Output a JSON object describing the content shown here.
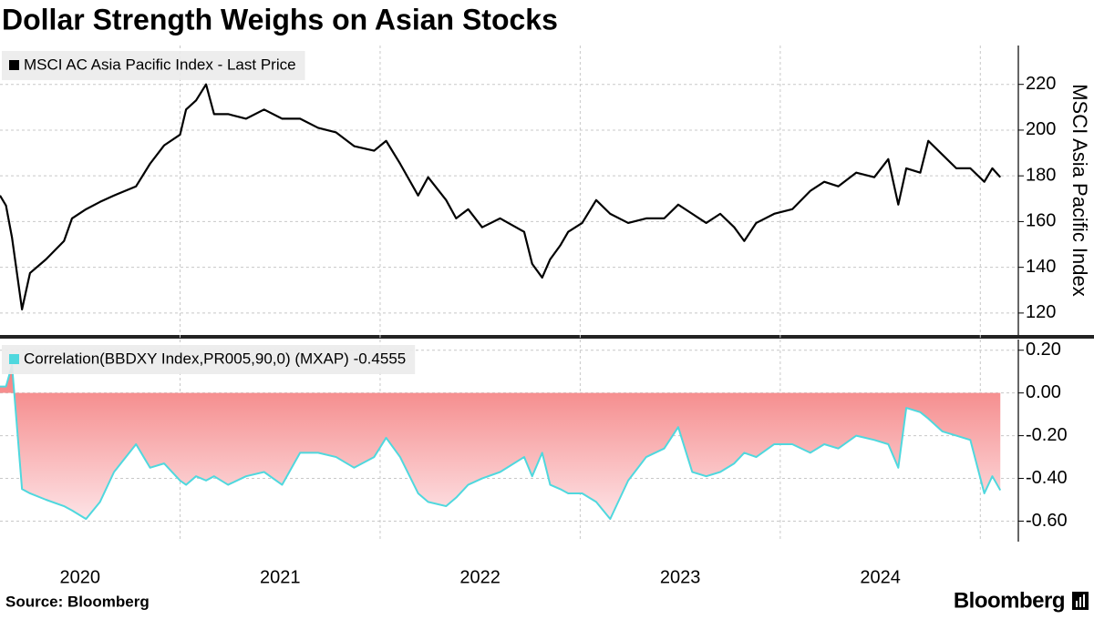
{
  "title": "Dollar Strength Weighs on Asian Stocks",
  "source": "Source: Bloomberg",
  "brand": "Bloomberg",
  "chart_data": [
    {
      "type": "line",
      "y_label": "MSCI Asia Pacific Index",
      "xlim": [
        2020.1,
        2025.19
      ],
      "xgrid": [
        2021,
        2022,
        2023,
        2024,
        2025
      ],
      "ylim": [
        110.4,
        237
      ],
      "yticks": [
        120,
        140,
        160,
        180,
        200,
        220
      ],
      "grid": true,
      "legend": "top-left",
      "x": [
        2020.1,
        2020.13,
        2020.16,
        2020.21,
        2020.25,
        2020.33,
        2020.42,
        2020.46,
        2020.53,
        2020.6,
        2020.67,
        2020.78,
        2020.85,
        2020.92,
        2021.0,
        2021.03,
        2021.08,
        2021.13,
        2021.17,
        2021.24,
        2021.33,
        2021.42,
        2021.51,
        2021.6,
        2021.69,
        2021.78,
        2021.87,
        2021.97,
        2022.03,
        2022.1,
        2022.19,
        2022.24,
        2022.33,
        2022.38,
        2022.44,
        2022.51,
        2022.6,
        2022.72,
        2022.76,
        2022.81,
        2022.85,
        2022.9,
        2022.94,
        2023.01,
        2023.08,
        2023.15,
        2023.24,
        2023.33,
        2023.42,
        2023.49,
        2023.56,
        2023.63,
        2023.7,
        2023.77,
        2023.82,
        2023.88,
        2023.97,
        2024.06,
        2024.15,
        2024.22,
        2024.29,
        2024.38,
        2024.47,
        2024.54,
        2024.59,
        2024.63,
        2024.7,
        2024.74,
        2024.81,
        2024.88,
        2024.95,
        2025.02,
        2025.06,
        2025.1
      ],
      "series": [
        {
          "name": "MSCI AC Asia Pacific Index - Last Price",
          "color": "#000000",
          "values": [
            171.4,
            167,
            153,
            121.6,
            137.5,
            143.5,
            151.5,
            161.4,
            165.4,
            168.6,
            171.4,
            175.4,
            185.3,
            193.3,
            198,
            209,
            213,
            220,
            207,
            207,
            205,
            209,
            205,
            205,
            201,
            199,
            193,
            191,
            195.3,
            185.3,
            171.4,
            179.4,
            169.4,
            161.4,
            165.4,
            157.5,
            161.4,
            155.5,
            141.5,
            135.5,
            143.5,
            149.5,
            155.5,
            159.4,
            169.4,
            163.4,
            159.4,
            161.4,
            161.4,
            167.4,
            163.4,
            159.4,
            163.4,
            157.5,
            151.5,
            159.4,
            163.4,
            165.4,
            173.4,
            177.4,
            175.4,
            181.4,
            179.4,
            187.3,
            167.4,
            183.3,
            181.4,
            195.3,
            189.3,
            183.3,
            183.3,
            177.4,
            183.3,
            179.4
          ]
        }
      ]
    },
    {
      "type": "area",
      "xlim": [
        2020.1,
        2025.19
      ],
      "xgrid": [
        2021,
        2022,
        2023,
        2024,
        2025
      ],
      "xticks": [
        {
          "value": 2020.5,
          "label": "2020"
        },
        {
          "value": 2021.5,
          "label": "2021"
        },
        {
          "value": 2022.5,
          "label": "2022"
        },
        {
          "value": 2023.5,
          "label": "2023"
        },
        {
          "value": 2024.5,
          "label": "2024"
        }
      ],
      "ylim": [
        -0.696,
        0.25
      ],
      "yticks": [
        {
          "value": 0.2,
          "label": "0.20"
        },
        {
          "value": 0,
          "label": "0.00"
        },
        {
          "value": -0.2,
          "label": "-0.20"
        },
        {
          "value": -0.4,
          "label": "-0.40"
        },
        {
          "value": -0.6,
          "label": "-0.60"
        }
      ],
      "grid": true,
      "legend": "top-left",
      "fill_colors": [
        "#f47c7c",
        "#fde3e6"
      ],
      "x": [
        2020.1,
        2020.13,
        2020.16,
        2020.21,
        2020.25,
        2020.33,
        2020.42,
        2020.46,
        2020.53,
        2020.6,
        2020.67,
        2020.78,
        2020.85,
        2020.92,
        2021.0,
        2021.03,
        2021.08,
        2021.13,
        2021.17,
        2021.24,
        2021.33,
        2021.42,
        2021.51,
        2021.6,
        2021.69,
        2021.78,
        2021.87,
        2021.97,
        2022.03,
        2022.1,
        2022.19,
        2022.24,
        2022.33,
        2022.38,
        2022.44,
        2022.51,
        2022.6,
        2022.72,
        2022.76,
        2022.81,
        2022.85,
        2022.9,
        2022.94,
        2023.01,
        2023.08,
        2023.15,
        2023.24,
        2023.33,
        2023.42,
        2023.49,
        2023.56,
        2023.63,
        2023.7,
        2023.77,
        2023.82,
        2023.88,
        2023.97,
        2024.06,
        2024.15,
        2024.22,
        2024.29,
        2024.38,
        2024.47,
        2024.54,
        2024.59,
        2024.63,
        2024.7,
        2024.74,
        2024.81,
        2024.88,
        2024.95,
        2025.02,
        2025.06,
        2025.1
      ],
      "series": [
        {
          "name": "Correlation(BBDXY Index,PR005,90,0) (MXAP) -0.4555",
          "color": "#4fd8de",
          "values": [
            0.03,
            0.03,
            0.13,
            -0.45,
            -0.47,
            -0.5,
            -0.53,
            -0.55,
            -0.59,
            -0.51,
            -0.37,
            -0.24,
            -0.35,
            -0.33,
            -0.41,
            -0.43,
            -0.39,
            -0.41,
            -0.39,
            -0.43,
            -0.39,
            -0.37,
            -0.43,
            -0.28,
            -0.28,
            -0.3,
            -0.35,
            -0.3,
            -0.21,
            -0.3,
            -0.47,
            -0.51,
            -0.53,
            -0.49,
            -0.43,
            -0.4,
            -0.37,
            -0.3,
            -0.39,
            -0.28,
            -0.43,
            -0.45,
            -0.47,
            -0.47,
            -0.51,
            -0.59,
            -0.41,
            -0.3,
            -0.26,
            -0.16,
            -0.37,
            -0.39,
            -0.37,
            -0.33,
            -0.28,
            -0.3,
            -0.24,
            -0.24,
            -0.28,
            -0.24,
            -0.26,
            -0.2,
            -0.22,
            -0.24,
            -0.35,
            -0.07,
            -0.09,
            -0.12,
            -0.18,
            -0.2,
            -0.22,
            -0.47,
            -0.39,
            -0.4555
          ]
        }
      ]
    }
  ]
}
